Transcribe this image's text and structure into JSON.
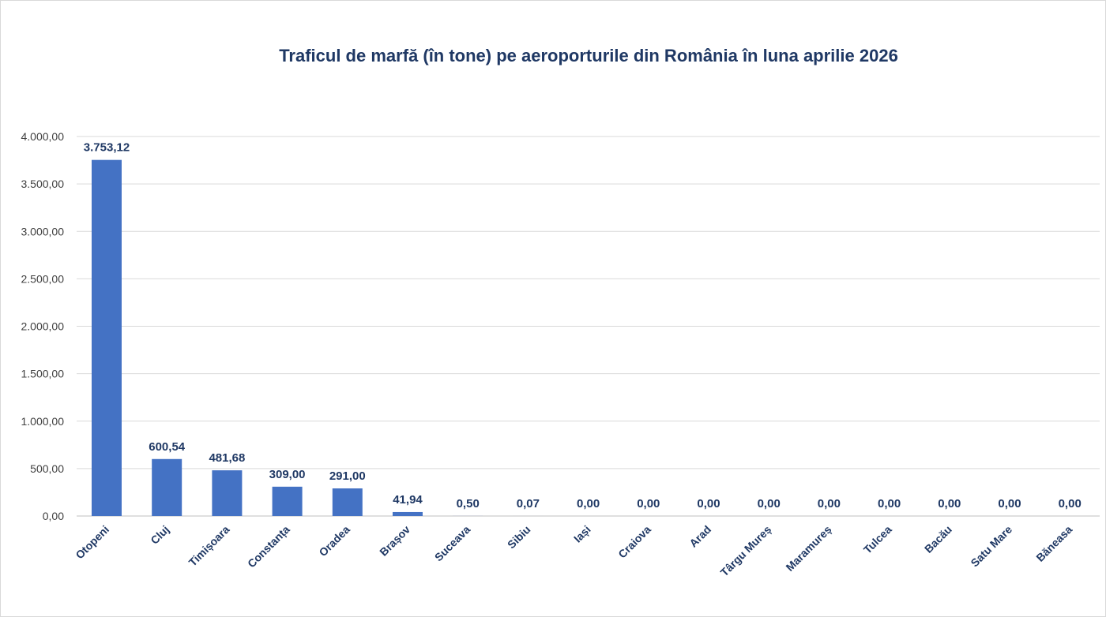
{
  "chart_data": {
    "type": "bar",
    "title": "Traficul de marfă (în tone) pe aeroporturile din România în luna aprilie 2026",
    "xlabel": "",
    "ylabel": "",
    "ylim": [
      0,
      4000
    ],
    "grid": true,
    "legend": "none",
    "bar_color": "#4472c4",
    "yticks": [
      "0,00",
      "500,00",
      "1.000,00",
      "1.500,00",
      "2.000,00",
      "2.500,00",
      "3.000,00",
      "3.500,00",
      "4.000,00"
    ],
    "ytick_values": [
      0,
      500,
      1000,
      1500,
      2000,
      2500,
      3000,
      3500,
      4000
    ],
    "categories": [
      "Otopeni",
      "Cluj",
      "Timișoara",
      "Constanța",
      "Oradea",
      "Brașov",
      "Suceava",
      "Sibiu",
      "Iași",
      "Craiova",
      "Arad",
      "Târgu Mureș",
      "Maramureș",
      "Tulcea",
      "Bacău",
      "Satu Mare",
      "Băneasa"
    ],
    "values": [
      3753.12,
      600.54,
      481.68,
      309.0,
      291.0,
      41.94,
      0.5,
      0.07,
      0.0,
      0.0,
      0.0,
      0.0,
      0.0,
      0.0,
      0.0,
      0.0,
      0.0
    ],
    "data_labels": [
      "3.753,12",
      "600,54",
      "481,68",
      "309,00",
      "291,00",
      "41,94",
      "0,50",
      "0,07",
      "0,00",
      "0,00",
      "0,00",
      "0,00",
      "0,00",
      "0,00",
      "0,00",
      "0,00",
      "0,00"
    ]
  }
}
